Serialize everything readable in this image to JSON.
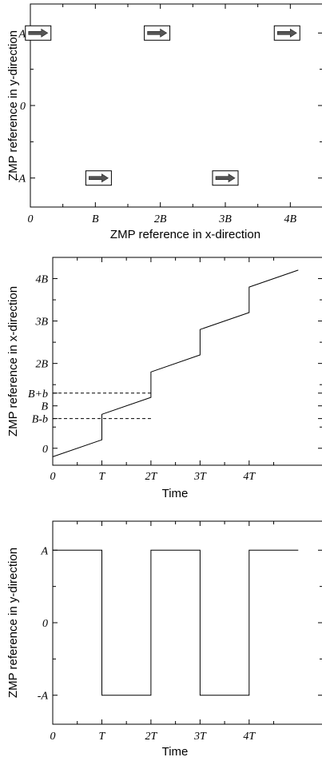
{
  "chart_data": [
    {
      "type": "scatter",
      "ylabel": "ZMP reference in y-direction",
      "xlabel": "ZMP reference in x-direction",
      "xlim": [
        0,
        4.5
      ],
      "ylim": [
        -1.4,
        1.4
      ],
      "xticks": [
        {
          "value": 0,
          "label": "0"
        },
        {
          "value": 1,
          "label": "B"
        },
        {
          "value": 2,
          "label": "2B"
        },
        {
          "value": 3,
          "label": "3B"
        },
        {
          "value": 4,
          "label": "4B"
        }
      ],
      "yticks": [
        {
          "value": 1,
          "label": "A"
        },
        {
          "value": 0,
          "label": "0"
        },
        {
          "value": -1,
          "label": "-A"
        }
      ],
      "footsteps": [
        {
          "x": 0.12,
          "y": 1.0
        },
        {
          "x": 1.05,
          "y": -1.0
        },
        {
          "x": 1.95,
          "y": 1.0
        },
        {
          "x": 3.0,
          "y": -1.0
        },
        {
          "x": 3.95,
          "y": 1.0
        }
      ],
      "marker": "right-arrow-in-box"
    },
    {
      "type": "line",
      "ylabel": "ZMP reference in x-direction",
      "xlabel": "Time",
      "xlim": [
        0,
        5.5
      ],
      "ylim": [
        -0.4,
        4.5
      ],
      "xticks": [
        {
          "value": 0,
          "label": "0"
        },
        {
          "value": 1,
          "label": "T"
        },
        {
          "value": 2,
          "label": "2T"
        },
        {
          "value": 3,
          "label": "3T"
        },
        {
          "value": 4,
          "label": "4T"
        }
      ],
      "yticks": [
        {
          "value": 4,
          "label": "4B"
        },
        {
          "value": 3,
          "label": "3B"
        },
        {
          "value": 2,
          "label": "2B"
        },
        {
          "value": 1.3,
          "label": "B+b"
        },
        {
          "value": 1.0,
          "label": "B"
        },
        {
          "value": 0.7,
          "label": "B-b"
        },
        {
          "value": 0,
          "label": "0"
        }
      ],
      "series": [
        {
          "x": [
            0,
            1,
            1,
            2,
            2,
            3,
            3,
            4,
            4,
            5
          ],
          "y": [
            -0.2,
            0.2,
            0.8,
            1.2,
            1.8,
            2.2,
            2.8,
            3.2,
            3.8,
            4.2
          ]
        }
      ],
      "reference_lines": [
        {
          "value": 1.3,
          "x_end": 2
        },
        {
          "value": 0.7,
          "x_end": 2
        }
      ]
    },
    {
      "type": "line",
      "ylabel": "ZMP reference in y-direction",
      "xlabel": "Time",
      "xlim": [
        0,
        5.5
      ],
      "ylim": [
        -1.4,
        1.4
      ],
      "xticks": [
        {
          "value": 0,
          "label": "0"
        },
        {
          "value": 1,
          "label": "T"
        },
        {
          "value": 2,
          "label": "2T"
        },
        {
          "value": 3,
          "label": "3T"
        },
        {
          "value": 4,
          "label": "4T"
        }
      ],
      "yticks": [
        {
          "value": 1,
          "label": "A"
        },
        {
          "value": 0,
          "label": "0"
        },
        {
          "value": -1,
          "label": "-A"
        }
      ],
      "series": [
        {
          "x": [
            0,
            1,
            1,
            2,
            2,
            3,
            3,
            4,
            4,
            5
          ],
          "y": [
            1,
            1,
            -1,
            -1,
            1,
            1,
            -1,
            -1,
            1,
            1
          ]
        }
      ]
    }
  ]
}
